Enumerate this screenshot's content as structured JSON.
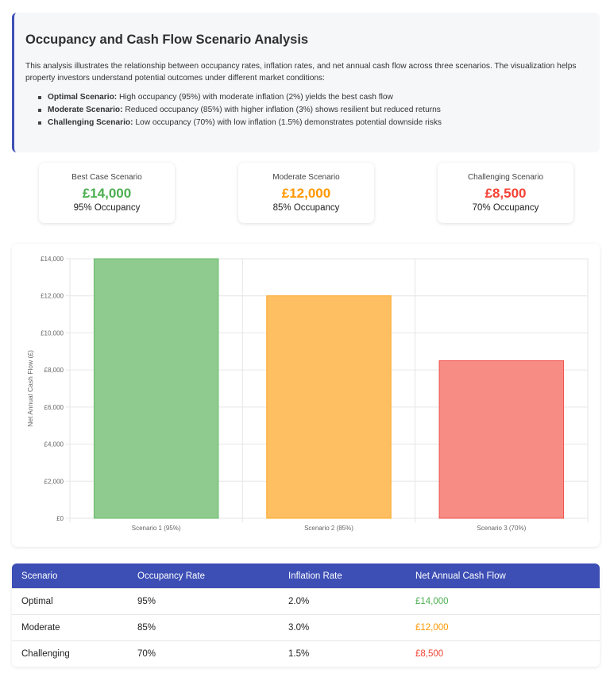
{
  "intro": {
    "title": "Occupancy and Cash Flow Scenario Analysis",
    "description": "This analysis illustrates the relationship between occupancy rates, inflation rates, and net annual cash flow across three scenarios. The visualization helps property investors understand potential outcomes under different market conditions:",
    "bullets": [
      {
        "label": "Optimal Scenario:",
        "text": " High occupancy (95%) with moderate inflation (2%) yields the best cash flow"
      },
      {
        "label": "Moderate Scenario:",
        "text": " Reduced occupancy (85%) with higher inflation (3%) shows resilient but reduced returns"
      },
      {
        "label": "Challenging Scenario:",
        "text": " Low occupancy (70%) with low inflation (1.5%) demonstrates potential downside risks"
      }
    ]
  },
  "cards": [
    {
      "title": "Best Case Scenario",
      "value": "£14,000",
      "sub": "95% Occupancy",
      "color": "#4caf50"
    },
    {
      "title": "Moderate Scenario",
      "value": "£12,000",
      "sub": "85% Occupancy",
      "color": "#ff9800"
    },
    {
      "title": "Challenging Scenario",
      "value": "£8,500",
      "sub": "70% Occupancy",
      "color": "#f44336"
    }
  ],
  "chart_data": {
    "type": "bar",
    "categories": [
      "Scenario 1 (95%)",
      "Scenario 2 (85%)",
      "Scenario 3 (70%)"
    ],
    "values": [
      14000,
      12000,
      8500
    ],
    "colors": [
      "#8fcb8f",
      "#fdbf62",
      "#f68c84"
    ],
    "border_colors": [
      "#66bb6a",
      "#ffa726",
      "#ef5350"
    ],
    "ylabel": "Net Annual Cash Flow (£)",
    "xlabel": "",
    "ylim": [
      0,
      14000
    ],
    "yticks": [
      0,
      2000,
      4000,
      6000,
      8000,
      10000,
      12000,
      14000
    ],
    "ytick_labels": [
      "£0",
      "£2,000",
      "£4,000",
      "£6,000",
      "£8,000",
      "£10,000",
      "£12,000",
      "£14,000"
    ],
    "grid": true,
    "legend": "none"
  },
  "table": {
    "headers": [
      "Scenario",
      "Occupancy Rate",
      "Inflation Rate",
      "Net Annual Cash Flow"
    ],
    "rows": [
      {
        "scenario": "Optimal",
        "occupancy": "95%",
        "inflation": "2.0%",
        "cash": "£14,000",
        "color": "#4caf50"
      },
      {
        "scenario": "Moderate",
        "occupancy": "85%",
        "inflation": "3.0%",
        "cash": "£12,000",
        "color": "#ff9800"
      },
      {
        "scenario": "Challenging",
        "occupancy": "70%",
        "inflation": "1.5%",
        "cash": "£8,500",
        "color": "#f44336"
      }
    ]
  }
}
